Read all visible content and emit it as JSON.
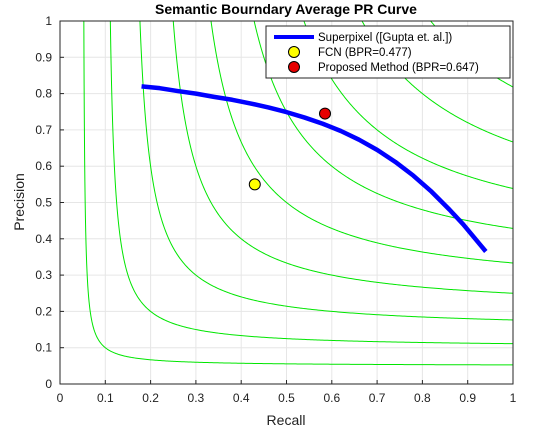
{
  "chart_data": {
    "type": "line",
    "title": "Semantic Bourndary Average PR Curve",
    "xlabel": "Recall",
    "ylabel": "Precision",
    "xlim": [
      0,
      1
    ],
    "ylim": [
      0,
      1
    ],
    "xticks": [
      "0",
      "0.1",
      "0.2",
      "0.3",
      "0.4",
      "0.5",
      "0.6",
      "0.7",
      "0.8",
      "0.9",
      "1"
    ],
    "yticks": [
      "0",
      "0.1",
      "0.2",
      "0.3",
      "0.4",
      "0.5",
      "0.6",
      "0.7",
      "0.8",
      "0.9",
      "1"
    ],
    "grid": true,
    "legend_position": "top-right",
    "iso_f_contours": {
      "color": "#00e600",
      "f_values": [
        0.1,
        0.2,
        0.3,
        0.4,
        0.5,
        0.6,
        0.7,
        0.8,
        0.9
      ]
    },
    "series": [
      {
        "name": "Superpixel ([Gupta et. al.])",
        "color": "#0000ff",
        "x": [
          0.18,
          0.22,
          0.26,
          0.3,
          0.34,
          0.38,
          0.42,
          0.46,
          0.5,
          0.54,
          0.58,
          0.62,
          0.66,
          0.7,
          0.74,
          0.78,
          0.82,
          0.86,
          0.89,
          0.91,
          0.93,
          0.94
        ],
        "y": [
          0.82,
          0.815,
          0.807,
          0.8,
          0.791,
          0.783,
          0.773,
          0.762,
          0.749,
          0.734,
          0.717,
          0.697,
          0.673,
          0.645,
          0.612,
          0.574,
          0.53,
          0.48,
          0.44,
          0.41,
          0.38,
          0.365
        ]
      }
    ],
    "points": [
      {
        "name": "FCN (BPR=0.477)",
        "x": 0.43,
        "y": 0.55,
        "color": "#ffff00"
      },
      {
        "name": "Proposed Method (BPR=0.647)",
        "x": 0.585,
        "y": 0.745,
        "color": "#e60000"
      }
    ]
  }
}
